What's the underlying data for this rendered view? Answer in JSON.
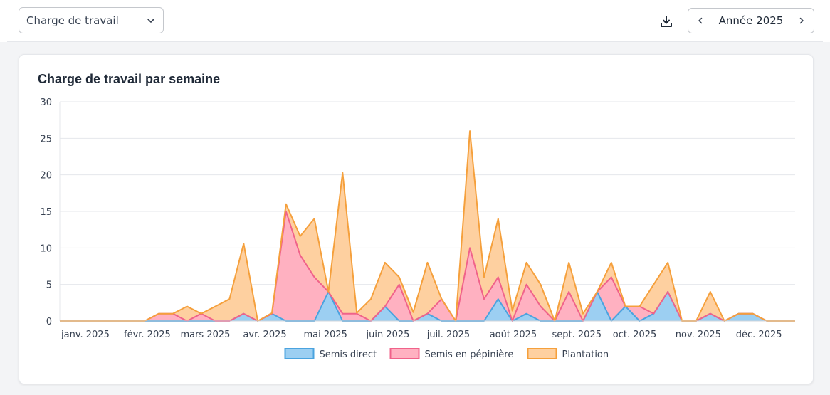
{
  "toolbar": {
    "metric_select": {
      "value": "Charge de travail"
    },
    "download_icon": "download-icon",
    "year_nav": {
      "label": "Année 2025",
      "prev_icon": "chevron-left-icon",
      "next_icon": "chevron-right-icon"
    }
  },
  "card": {
    "title": "Charge de travail par semaine"
  },
  "chart_data": {
    "type": "area",
    "stacked": true,
    "title": "Charge de travail par semaine",
    "xlabel": "",
    "ylabel": "",
    "ylim": [
      0,
      30
    ],
    "yticks": [
      0,
      5,
      10,
      15,
      20,
      25,
      30
    ],
    "grid": true,
    "legend_position": "bottom",
    "x": [
      1,
      2,
      3,
      4,
      5,
      6,
      7,
      8,
      9,
      10,
      11,
      12,
      13,
      14,
      15,
      16,
      17,
      18,
      19,
      20,
      21,
      22,
      23,
      24,
      25,
      26,
      27,
      28,
      29,
      30,
      31,
      32,
      33,
      34,
      35,
      36,
      37,
      38,
      39,
      40,
      41,
      42,
      43,
      44,
      45,
      46,
      47,
      48,
      49,
      50,
      51,
      52,
      53
    ],
    "month_ticks": [
      {
        "label": "janv. 2025",
        "week": 0
      },
      {
        "label": "févr. 2025",
        "week": 4.43
      },
      {
        "label": "mars 2025",
        "week": 8.43
      },
      {
        "label": "avr. 2025",
        "week": 12.86
      },
      {
        "label": "mai 2025",
        "week": 17.14
      },
      {
        "label": "juin 2025",
        "week": 21.57
      },
      {
        "label": "juil. 2025",
        "week": 25.86
      },
      {
        "label": "août 2025",
        "week": 30.29
      },
      {
        "label": "sept. 2025",
        "week": 34.71
      },
      {
        "label": "oct. 2025",
        "week": 39
      },
      {
        "label": "nov. 2025",
        "week": 43.43
      },
      {
        "label": "déc. 2025",
        "week": 47.71
      }
    ],
    "series": [
      {
        "name": "Semis direct",
        "color": "#4aa3df",
        "fill": "#9ccff2",
        "values": [
          0,
          0,
          0,
          0,
          0,
          0,
          0,
          0,
          0,
          0,
          0,
          0,
          0,
          1,
          0,
          1,
          0,
          0,
          0,
          4,
          0,
          0,
          0,
          2,
          0,
          0,
          1,
          0,
          0,
          0,
          0,
          3,
          0,
          1,
          0,
          0,
          0,
          0,
          4,
          0,
          2,
          0,
          1,
          4,
          0,
          0,
          1,
          0,
          1,
          1,
          0,
          0,
          0
        ]
      },
      {
        "name": "Semis en pépinière",
        "color": "#f0628a",
        "fill": "#ffb1c1",
        "values": [
          0,
          0,
          0,
          0,
          0,
          0,
          0,
          1,
          1,
          0,
          1,
          0,
          0,
          0,
          0,
          0,
          15,
          9,
          6,
          0,
          1,
          1,
          0,
          0,
          5,
          0,
          0,
          3,
          0,
          10,
          3,
          3,
          0,
          4,
          2,
          0,
          4,
          0,
          0,
          6,
          0,
          2,
          0,
          0,
          0,
          0,
          0,
          0,
          0,
          0,
          0,
          0,
          0
        ]
      },
      {
        "name": "Plantation",
        "color": "#f5a03c",
        "fill": "#fed0a0",
        "values": [
          0,
          0,
          0,
          0,
          0,
          0,
          0,
          0,
          0,
          2,
          0,
          2,
          3,
          9.6,
          0,
          0.1,
          1,
          2.6,
          8,
          0,
          19.3,
          0.1,
          3,
          6,
          1,
          1.2,
          7,
          0,
          0,
          16,
          3,
          8,
          1.4,
          3,
          3,
          0,
          4,
          1,
          0,
          2,
          0,
          0,
          4,
          4,
          0,
          0,
          3,
          0,
          0,
          0,
          0,
          0,
          0
        ]
      }
    ]
  }
}
